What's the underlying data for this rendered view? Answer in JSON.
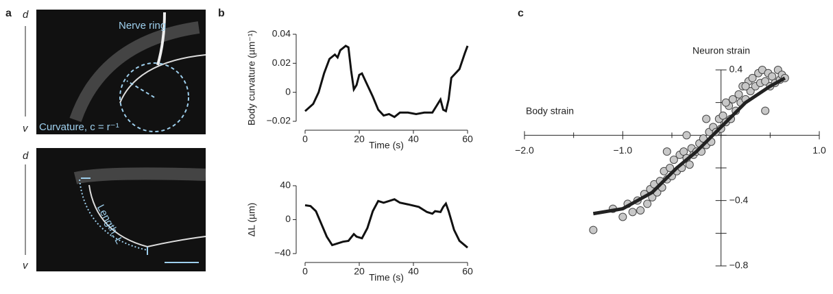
{
  "panels": {
    "letters": [
      "a",
      "b",
      "c"
    ],
    "dorsal": "d",
    "ventral": "v",
    "nerve_ring": "Nerve ring",
    "curvature": "Curvature, c = r⁻¹",
    "length": "Length, L"
  },
  "chart_data": [
    {
      "type": "line",
      "ylabel": "Body curvature (µm⁻¹)",
      "xlabel": "Time (s)",
      "color": "#111111",
      "x": [
        0,
        3,
        5,
        7,
        9,
        11,
        12,
        13,
        15,
        16,
        17,
        18,
        19,
        20,
        21,
        23,
        25,
        27,
        29,
        31,
        33,
        35,
        38,
        41,
        44,
        47,
        49,
        50,
        51,
        52,
        53,
        54,
        55,
        57,
        59,
        60
      ],
      "values": [
        -0.013,
        -0.008,
        0.0,
        0.013,
        0.023,
        0.026,
        0.024,
        0.029,
        0.032,
        0.031,
        0.015,
        0.002,
        0.005,
        0.012,
        0.013,
        0.005,
        -0.003,
        -0.012,
        -0.016,
        -0.015,
        -0.017,
        -0.014,
        -0.014,
        -0.015,
        -0.014,
        -0.014,
        -0.008,
        -0.005,
        -0.012,
        -0.013,
        -0.005,
        0.01,
        0.012,
        0.016,
        0.027,
        0.032
      ],
      "xlim": [
        0,
        60
      ],
      "xticks": [
        0,
        20,
        40,
        60
      ],
      "ylim": [
        -0.02,
        0.04
      ],
      "yticks": [
        {
          "value": -0.02,
          "label": "−0.02"
        },
        0,
        0.02,
        0.04
      ]
    },
    {
      "type": "line",
      "ylabel": "ΔL (µm)",
      "xlabel": "Time (s)",
      "color": "#111111",
      "x": [
        0,
        2,
        4,
        6,
        8,
        10,
        12,
        14,
        16,
        18,
        19,
        21,
        23,
        25,
        27,
        29,
        31,
        33,
        35,
        38,
        42,
        45,
        47,
        48,
        50,
        51,
        52,
        53,
        55,
        57,
        60
      ],
      "values": [
        17,
        16,
        10,
        -5,
        -20,
        -30,
        -28,
        -26,
        -25,
        -17,
        -20,
        -22,
        -10,
        10,
        22,
        20,
        22,
        24,
        20,
        18,
        15,
        9,
        7,
        10,
        9,
        15,
        19,
        10,
        -12,
        -25,
        -33
      ],
      "xlim": [
        0,
        60
      ],
      "xticks": [
        0,
        20,
        40,
        60
      ],
      "ylim": [
        -40,
        40
      ],
      "yticks": [
        {
          "value": -40,
          "label": "−40"
        },
        0,
        40
      ]
    },
    {
      "type": "scatter",
      "ylabel": "Neuron strain",
      "xlabel": "Body strain",
      "color": "#c8c8c8",
      "x": [
        -1.3,
        -1.1,
        -1.0,
        -0.95,
        -0.9,
        -0.85,
        -0.82,
        -0.78,
        -0.75,
        -0.72,
        -0.7,
        -0.68,
        -0.65,
        -0.62,
        -0.6,
        -0.58,
        -0.55,
        -0.52,
        -0.5,
        -0.48,
        -0.45,
        -0.42,
        -0.4,
        -0.38,
        -0.35,
        -0.32,
        -0.3,
        -0.28,
        -0.25,
        -0.22,
        -0.2,
        -0.18,
        -0.15,
        -0.12,
        -0.1,
        -0.08,
        -0.05,
        -0.02,
        0.0,
        0.02,
        0.05,
        0.08,
        0.1,
        0.12,
        0.15,
        0.18,
        0.2,
        0.22,
        0.25,
        0.28,
        0.3,
        0.32,
        0.35,
        0.38,
        0.4,
        0.42,
        0.45,
        0.48,
        0.5,
        0.52,
        0.55,
        0.58,
        0.6,
        0.62,
        0.65,
        -0.55,
        -0.35,
        -0.15,
        0.05,
        0.25,
        0.45
      ],
      "values": [
        -0.58,
        -0.45,
        -0.5,
        -0.42,
        -0.47,
        -0.4,
        -0.46,
        -0.36,
        -0.42,
        -0.33,
        -0.38,
        -0.3,
        -0.35,
        -0.28,
        -0.32,
        -0.22,
        -0.27,
        -0.2,
        -0.25,
        -0.15,
        -0.22,
        -0.12,
        -0.2,
        -0.1,
        -0.14,
        -0.18,
        -0.08,
        -0.12,
        -0.1,
        -0.05,
        -0.1,
        -0.02,
        -0.06,
        0.02,
        -0.04,
        0.05,
        0.02,
        0.1,
        0.04,
        0.12,
        0.08,
        0.18,
        0.1,
        0.22,
        0.15,
        0.25,
        0.2,
        0.3,
        0.22,
        0.33,
        0.27,
        0.35,
        0.3,
        0.38,
        0.32,
        0.4,
        0.33,
        0.38,
        0.3,
        0.36,
        0.32,
        0.4,
        0.34,
        0.37,
        0.35,
        -0.1,
        0.0,
        0.1,
        0.2,
        0.3,
        0.15
      ],
      "fit": {
        "color": "#222222",
        "x": [
          -1.3,
          -1.0,
          -0.7,
          -0.45,
          -0.25,
          0.0,
          0.25,
          0.5,
          0.65
        ],
        "values": [
          -0.48,
          -0.45,
          -0.35,
          -0.2,
          -0.1,
          0.05,
          0.2,
          0.3,
          0.35
        ]
      },
      "xlim": [
        -2,
        1
      ],
      "xticks": [
        {
          "value": -2,
          "label": "−2.0"
        },
        {
          "value": -1,
          "label": "−1.0"
        },
        {
          "value": 1,
          "label": "1.0"
        }
      ],
      "xminor": [
        -1.5,
        -0.5,
        0,
        0.5
      ],
      "ylim": [
        -0.8,
        0.4
      ],
      "yticks": [
        {
          "value": -0.8,
          "label": "−0.8"
        },
        {
          "value": -0.4,
          "label": "−0.4"
        },
        {
          "value": 0.4,
          "label": "0.4"
        }
      ],
      "yminor": [
        -0.6,
        -0.2,
        0,
        0.2
      ]
    }
  ]
}
